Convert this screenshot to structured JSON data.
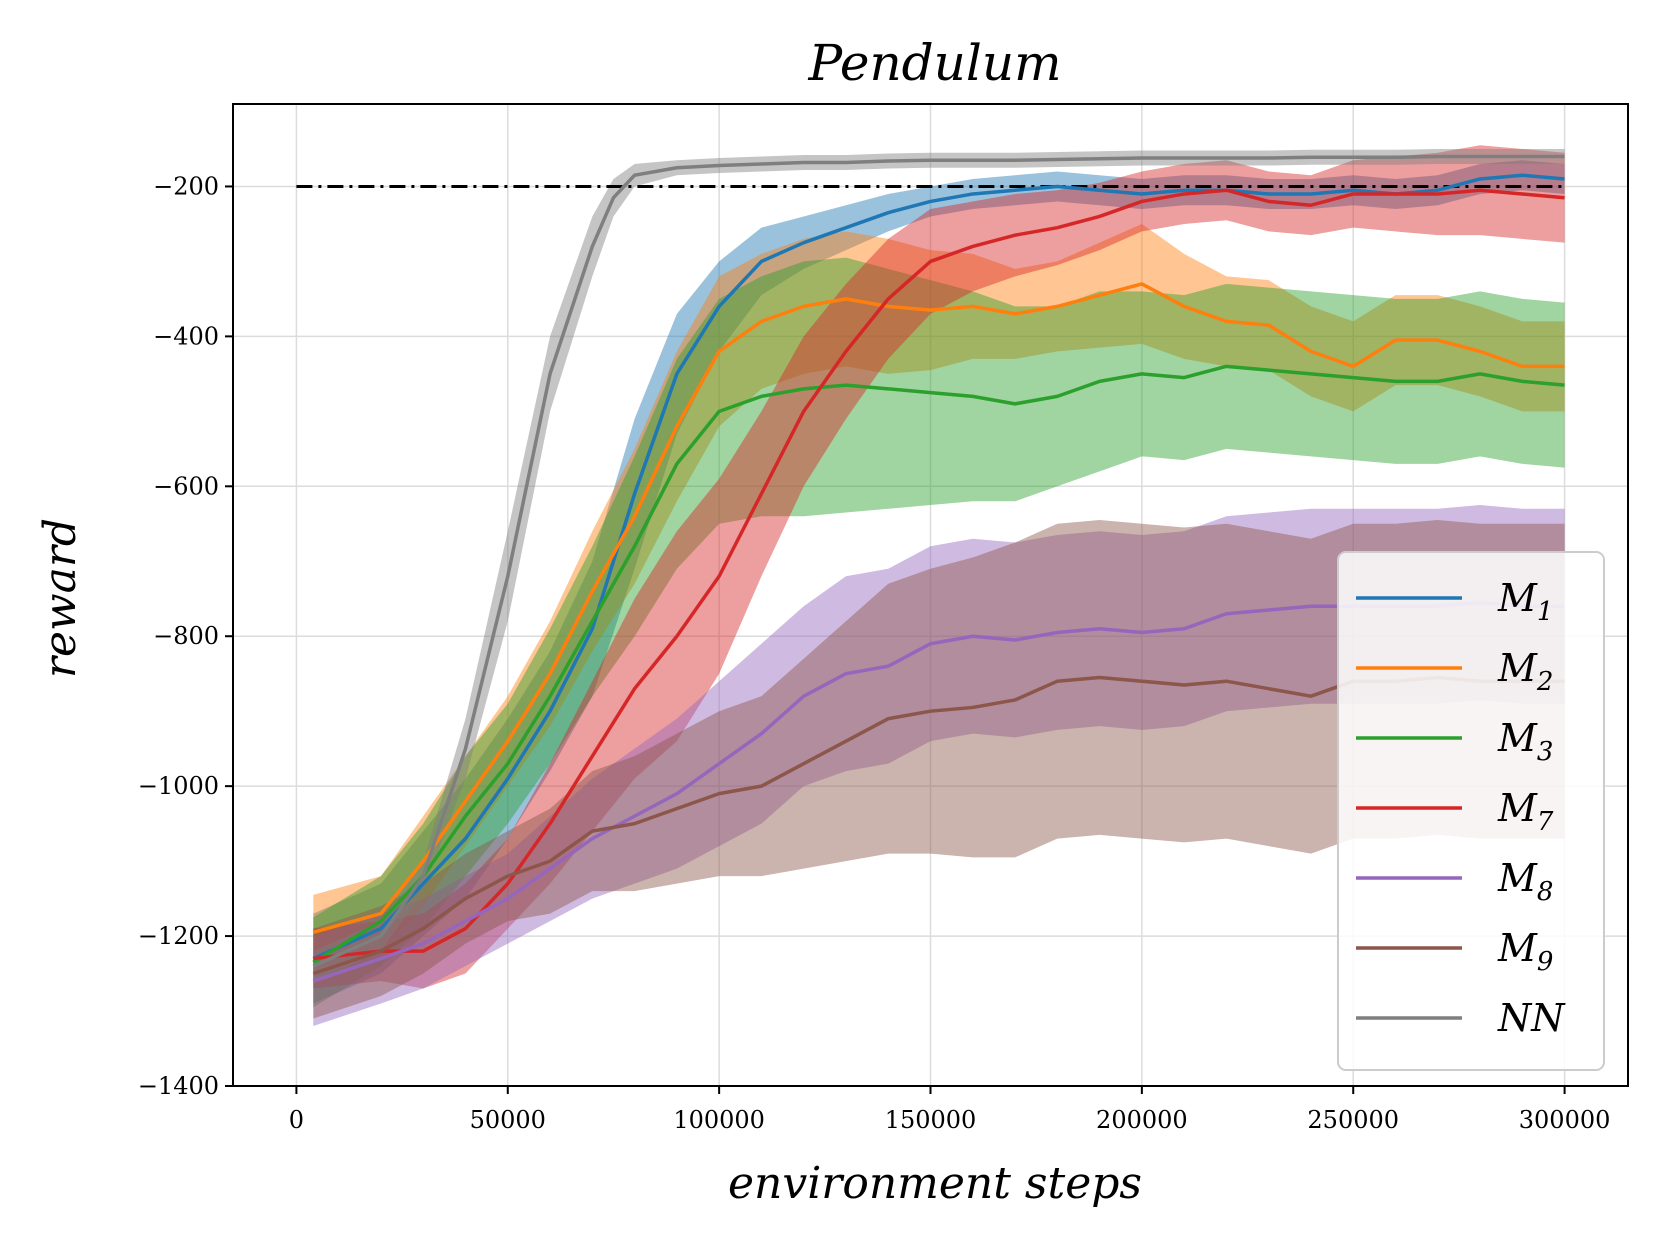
{
  "chart_data": {
    "type": "line",
    "title": "Pendulum",
    "xlabel": "environment steps",
    "ylabel": "reward",
    "xlim": [
      -15000,
      315000
    ],
    "ylim": [
      -1400,
      -90
    ],
    "xticks": [
      0,
      50000,
      100000,
      150000,
      200000,
      250000,
      300000
    ],
    "yticks": [
      -1400,
      -1200,
      -1000,
      -800,
      -600,
      -400,
      -200
    ],
    "xtick_labels": [
      "0",
      "50000",
      "100000",
      "150000",
      "200000",
      "250000",
      "300000"
    ],
    "ytick_labels": [
      "−1400",
      "−1200",
      "−1000",
      "−800",
      "−600",
      "−400",
      "−200"
    ],
    "grid": true,
    "legend_position": "lower-right",
    "reference_line": {
      "y": -200,
      "x_range": [
        0,
        300000
      ],
      "style": "dash-dot",
      "color": "#000000"
    },
    "series": [
      {
        "name": "M1",
        "sub": "1",
        "color": "#1f77b4",
        "x": [
          4000,
          20000,
          30000,
          40000,
          50000,
          60000,
          70000,
          80000,
          90000,
          100000,
          110000,
          120000,
          130000,
          140000,
          150000,
          160000,
          170000,
          180000,
          190000,
          200000,
          210000,
          220000,
          230000,
          240000,
          250000,
          260000,
          270000,
          280000,
          290000,
          300000
        ],
        "y": [
          -1230,
          -1190,
          -1130,
          -1070,
          -990,
          -900,
          -790,
          -610,
          -450,
          -360,
          -300,
          -275,
          -255,
          -235,
          -220,
          -210,
          -205,
          -200,
          -205,
          -210,
          -205,
          -205,
          -210,
          -210,
          -205,
          -210,
          -205,
          -190,
          -185,
          -190
        ],
        "band": [
          60,
          60,
          70,
          80,
          80,
          80,
          90,
          100,
          80,
          60,
          45,
          35,
          30,
          25,
          20,
          20,
          20,
          20,
          20,
          20,
          20,
          20,
          20,
          20,
          20,
          20,
          20,
          20,
          20,
          20
        ]
      },
      {
        "name": "M2",
        "sub": "2",
        "color": "#ff7f0e",
        "x": [
          4000,
          20000,
          30000,
          40000,
          50000,
          60000,
          70000,
          80000,
          90000,
          100000,
          110000,
          120000,
          130000,
          140000,
          150000,
          160000,
          170000,
          180000,
          190000,
          200000,
          210000,
          220000,
          230000,
          240000,
          250000,
          260000,
          270000,
          280000,
          290000,
          300000
        ],
        "y": [
          -1195,
          -1170,
          -1100,
          -1020,
          -940,
          -850,
          -740,
          -640,
          -520,
          -420,
          -380,
          -360,
          -350,
          -360,
          -365,
          -360,
          -370,
          -360,
          -345,
          -330,
          -360,
          -380,
          -385,
          -420,
          -440,
          -405,
          -405,
          -420,
          -440,
          -440
        ],
        "band": [
          50,
          50,
          60,
          60,
          60,
          70,
          80,
          90,
          100,
          100,
          90,
          90,
          90,
          90,
          80,
          70,
          60,
          60,
          70,
          80,
          70,
          60,
          60,
          60,
          60,
          60,
          60,
          60,
          60,
          60
        ]
      },
      {
        "name": "M3",
        "sub": "3",
        "color": "#2ca02c",
        "x": [
          4000,
          20000,
          30000,
          40000,
          50000,
          60000,
          70000,
          80000,
          90000,
          100000,
          110000,
          120000,
          130000,
          140000,
          150000,
          160000,
          170000,
          180000,
          190000,
          200000,
          210000,
          220000,
          230000,
          240000,
          250000,
          260000,
          270000,
          280000,
          290000,
          300000
        ],
        "y": [
          -1235,
          -1180,
          -1120,
          -1040,
          -970,
          -880,
          -780,
          -680,
          -570,
          -500,
          -480,
          -470,
          -465,
          -470,
          -475,
          -480,
          -490,
          -480,
          -460,
          -450,
          -455,
          -440,
          -445,
          -450,
          -455,
          -460,
          -460,
          -450,
          -460,
          -465
        ],
        "band": [
          60,
          60,
          70,
          80,
          80,
          90,
          100,
          120,
          140,
          150,
          160,
          170,
          170,
          160,
          150,
          140,
          130,
          120,
          120,
          110,
          110,
          110,
          110,
          110,
          110,
          110,
          110,
          110,
          110,
          110
        ]
      },
      {
        "name": "M7",
        "sub": "7",
        "color": "#d62728",
        "x": [
          4000,
          20000,
          30000,
          40000,
          50000,
          60000,
          70000,
          80000,
          90000,
          100000,
          110000,
          120000,
          130000,
          140000,
          150000,
          160000,
          170000,
          180000,
          190000,
          200000,
          210000,
          220000,
          230000,
          240000,
          250000,
          260000,
          270000,
          280000,
          290000,
          300000
        ],
        "y": [
          -1230,
          -1220,
          -1220,
          -1190,
          -1130,
          -1050,
          -960,
          -870,
          -800,
          -720,
          -610,
          -500,
          -420,
          -350,
          -300,
          -280,
          -265,
          -255,
          -240,
          -220,
          -210,
          -205,
          -220,
          -225,
          -210,
          -210,
          -210,
          -205,
          -210,
          -215
        ],
        "band": [
          40,
          40,
          50,
          60,
          60,
          80,
          100,
          120,
          140,
          130,
          110,
          100,
          90,
          80,
          70,
          60,
          55,
          50,
          45,
          40,
          40,
          40,
          40,
          40,
          45,
          50,
          55,
          60,
          60,
          60
        ]
      },
      {
        "name": "M8",
        "sub": "8",
        "color": "#9467bd",
        "x": [
          4000,
          20000,
          30000,
          40000,
          50000,
          60000,
          70000,
          80000,
          90000,
          100000,
          110000,
          120000,
          130000,
          140000,
          150000,
          160000,
          170000,
          180000,
          190000,
          200000,
          210000,
          220000,
          230000,
          240000,
          250000,
          260000,
          270000,
          280000,
          290000,
          300000
        ],
        "y": [
          -1260,
          -1230,
          -1210,
          -1180,
          -1150,
          -1110,
          -1070,
          -1040,
          -1010,
          -970,
          -930,
          -880,
          -850,
          -840,
          -810,
          -800,
          -805,
          -795,
          -790,
          -795,
          -790,
          -770,
          -765,
          -760,
          -760,
          -760,
          -760,
          -755,
          -760,
          -760
        ],
        "band": [
          60,
          60,
          60,
          60,
          60,
          70,
          80,
          90,
          100,
          110,
          120,
          120,
          130,
          130,
          130,
          130,
          130,
          130,
          130,
          130,
          130,
          130,
          130,
          130,
          130,
          130,
          130,
          130,
          130,
          130
        ]
      },
      {
        "name": "M9",
        "sub": "9",
        "color": "#8c564b",
        "x": [
          4000,
          20000,
          30000,
          40000,
          50000,
          60000,
          70000,
          80000,
          90000,
          100000,
          110000,
          120000,
          130000,
          140000,
          150000,
          160000,
          170000,
          180000,
          190000,
          200000,
          210000,
          220000,
          230000,
          240000,
          250000,
          260000,
          270000,
          280000,
          290000,
          300000
        ],
        "y": [
          -1250,
          -1220,
          -1190,
          -1150,
          -1120,
          -1100,
          -1060,
          -1050,
          -1030,
          -1010,
          -1000,
          -970,
          -940,
          -910,
          -900,
          -895,
          -885,
          -860,
          -855,
          -860,
          -865,
          -860,
          -870,
          -880,
          -860,
          -860,
          -855,
          -860,
          -860,
          -860
        ],
        "band": [
          60,
          60,
          60,
          60,
          60,
          70,
          80,
          90,
          100,
          110,
          120,
          140,
          160,
          180,
          190,
          200,
          210,
          210,
          210,
          210,
          210,
          210,
          210,
          210,
          210,
          210,
          210,
          210,
          210,
          210
        ]
      },
      {
        "name": "NN",
        "sub": "",
        "color": "#7f7f7f",
        "x": [
          4000,
          20000,
          30000,
          40000,
          50000,
          60000,
          70000,
          75000,
          80000,
          90000,
          100000,
          110000,
          120000,
          130000,
          140000,
          150000,
          160000,
          170000,
          180000,
          190000,
          200000,
          210000,
          220000,
          230000,
          240000,
          250000,
          260000,
          270000,
          280000,
          290000,
          300000
        ],
        "y": [
          -1240,
          -1200,
          -1120,
          -950,
          -720,
          -450,
          -280,
          -215,
          -185,
          -175,
          -172,
          -170,
          -168,
          -168,
          -166,
          -165,
          -165,
          -165,
          -164,
          -163,
          -162,
          -162,
          -162,
          -162,
          -161,
          -161,
          -161,
          -160,
          -160,
          -160,
          -160
        ],
        "band": [
          20,
          20,
          20,
          40,
          60,
          50,
          40,
          25,
          15,
          10,
          10,
          10,
          10,
          10,
          10,
          10,
          10,
          10,
          10,
          10,
          10,
          10,
          10,
          10,
          10,
          10,
          10,
          10,
          10,
          10,
          10
        ]
      }
    ]
  }
}
